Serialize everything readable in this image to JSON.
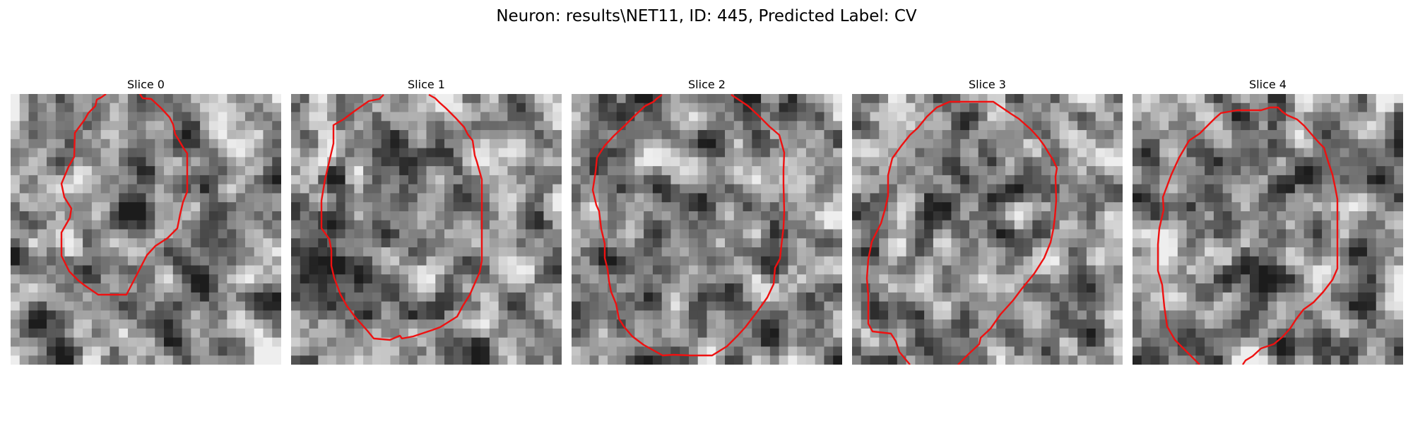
{
  "figure": {
    "title": "Neuron: results\\NET11, ID: 445, Predicted Label: CV"
  },
  "panels": [
    {
      "title": "Slice 0"
    },
    {
      "title": "Slice 1"
    },
    {
      "title": "Slice 2"
    },
    {
      "title": "Slice 3"
    },
    {
      "title": "Slice 4"
    }
  ],
  "colors": {
    "background": "#ffffff",
    "contour": "#ee1111",
    "text": "#000000"
  },
  "image": {
    "colormap": "grayscale",
    "grid_cells": 30
  }
}
